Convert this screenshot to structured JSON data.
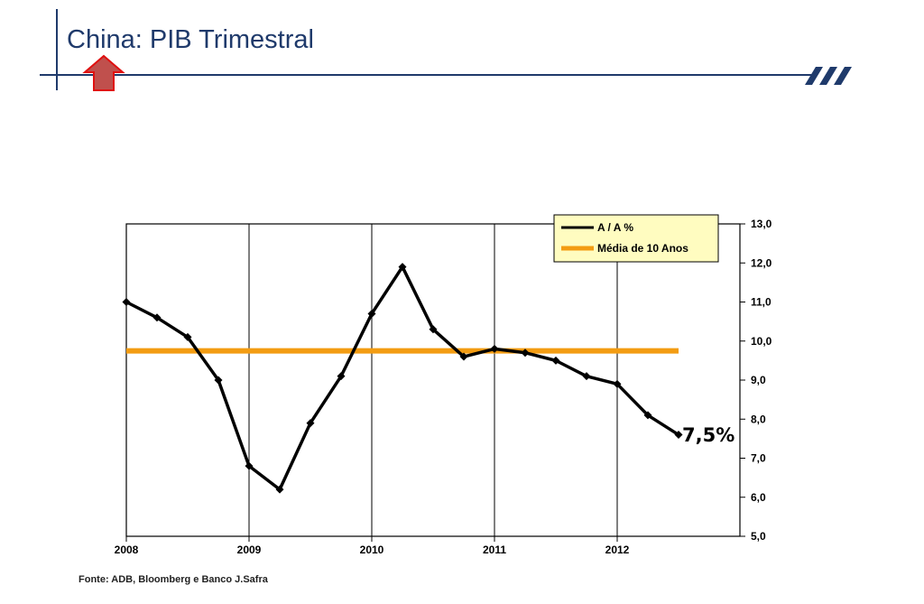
{
  "header": {
    "title": "China: PIB Trimestral",
    "accent_color": "#1f3a6b",
    "arrow_icon": "up-arrow-icon",
    "logo_icon": "bank-logo-icon"
  },
  "source_note": "Fonte: ADB, Bloomberg e Banco J.Safra",
  "callout": "7,5%",
  "chart_data": {
    "type": "line",
    "title": "",
    "xlabel": "",
    "ylabel": "",
    "ylim": [
      5.0,
      13.0
    ],
    "xlim": [
      2008.0,
      2013.0
    ],
    "y_axis_side": "right",
    "yticks": [
      "5,0",
      "6,0",
      "7,0",
      "8,0",
      "9,0",
      "10,0",
      "11,0",
      "12,0",
      "13,0"
    ],
    "xticks": [
      "2008",
      "2009",
      "2010",
      "2011",
      "2012"
    ],
    "grid": false,
    "legend_position": "top-right",
    "series": [
      {
        "name": "A / A %",
        "color": "#000000",
        "marker": "diamond",
        "x": [
          2008.0,
          2008.25,
          2008.5,
          2008.75,
          2009.0,
          2009.25,
          2009.5,
          2009.75,
          2010.0,
          2010.25,
          2010.5,
          2010.75,
          2011.0,
          2011.25,
          2011.5,
          2011.75,
          2012.0,
          2012.25,
          2012.5
        ],
        "values": [
          11.0,
          10.6,
          10.1,
          9.0,
          6.8,
          6.2,
          7.9,
          9.1,
          10.7,
          11.9,
          10.3,
          9.6,
          9.8,
          9.7,
          9.5,
          9.1,
          8.9,
          8.1,
          7.6
        ]
      },
      {
        "name": "Média de 10 Anos",
        "color": "#f39c12",
        "marker": "none",
        "x": [
          2008.0,
          2012.5
        ],
        "values": [
          9.75,
          9.75
        ]
      }
    ]
  }
}
